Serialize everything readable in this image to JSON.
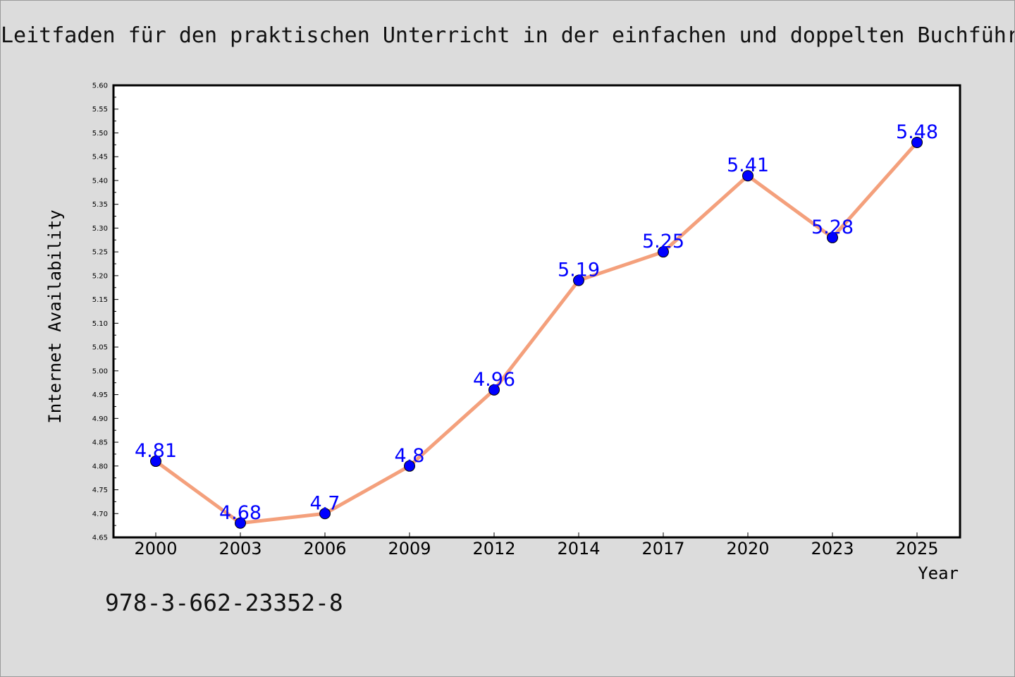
{
  "header": {
    "title": "Leitfaden für den praktischen Unterricht in der einfachen und doppelten Buchführ"
  },
  "footer": {
    "isbn": "978-3-662-23352-8"
  },
  "colors": {
    "background": "#dcdcdc",
    "plot_bg": "#ffffff",
    "line": "#f4a07c",
    "marker": "#0000ff",
    "data_label": "#0000ff"
  },
  "chart_data": {
    "type": "line",
    "title": "Leitfaden für den praktischen Unterricht in der einfachen und doppelten Buchführ",
    "xlabel": "Year",
    "ylabel": "Internet Availability",
    "categories": [
      "2000",
      "2003",
      "2006",
      "2009",
      "2012",
      "2014",
      "2017",
      "2020",
      "2023",
      "2025"
    ],
    "series": [
      {
        "values": [
          4.81,
          4.68,
          4.7,
          4.8,
          4.96,
          5.19,
          5.25,
          5.41,
          5.28,
          5.48
        ],
        "labels": [
          "4.81",
          "4.68",
          "4.7",
          "4.8",
          "4.96",
          "5.19",
          "5.25",
          "5.41",
          "5.28",
          "5.48"
        ]
      }
    ],
    "ylim": [
      4.65,
      5.6
    ],
    "ystep": 0.05,
    "grid": false,
    "legend": "none"
  }
}
